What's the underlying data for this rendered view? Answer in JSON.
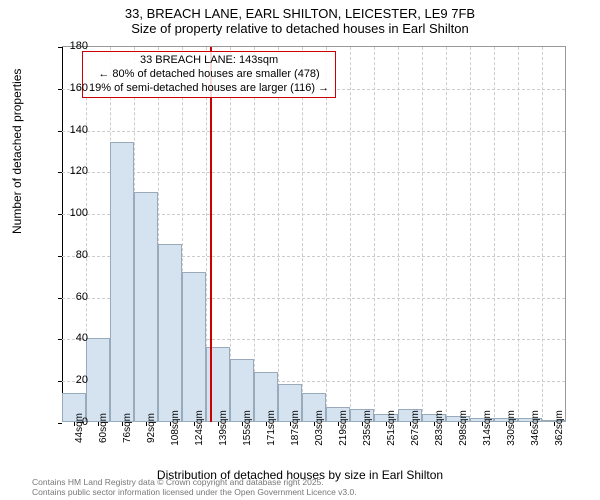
{
  "title": {
    "line1": "33, BREACH LANE, EARL SHILTON, LEICESTER, LE9 7FB",
    "line2": "Size of property relative to detached houses in Earl Shilton"
  },
  "chart": {
    "type": "histogram",
    "ylim": [
      0,
      180
    ],
    "ytick_step": 20,
    "yticks": [
      0,
      20,
      40,
      60,
      80,
      100,
      120,
      140,
      160,
      180
    ],
    "xlabels": [
      "44sqm",
      "60sqm",
      "76sqm",
      "92sqm",
      "108sqm",
      "124sqm",
      "139sqm",
      "155sqm",
      "171sqm",
      "187sqm",
      "203sqm",
      "219sqm",
      "235sqm",
      "251sqm",
      "267sqm",
      "283sqm",
      "298sqm",
      "314sqm",
      "330sqm",
      "346sqm",
      "362sqm"
    ],
    "values": [
      14,
      40,
      134,
      110,
      85,
      72,
      36,
      30,
      24,
      18,
      14,
      7,
      6,
      4,
      6,
      4,
      3,
      2,
      2,
      2,
      0
    ],
    "bar_fill": "#d5e2f0",
    "bar_stroke": "#99aabb",
    "background_color": "#ffffff",
    "grid_color": "#cccccc",
    "axis_color": "#000000",
    "marker": {
      "position_index": 6.15,
      "color": "#cc0000"
    },
    "annotation": {
      "lines": [
        "33 BREACH LANE: 143sqm",
        "← 80% of detached houses are smaller (478)",
        "19% of semi-detached houses are larger (116) →"
      ],
      "border_color": "#cc0000"
    },
    "y_axis_title": "Number of detached properties",
    "x_axis_title": "Distribution of detached houses by size in Earl Shilton",
    "title_fontsize": 13,
    "label_fontsize": 11
  },
  "footer": {
    "line1": "Contains HM Land Registry data © Crown copyright and database right 2025.",
    "line2": "Contains public sector information licensed under the Open Government Licence v3.0."
  }
}
